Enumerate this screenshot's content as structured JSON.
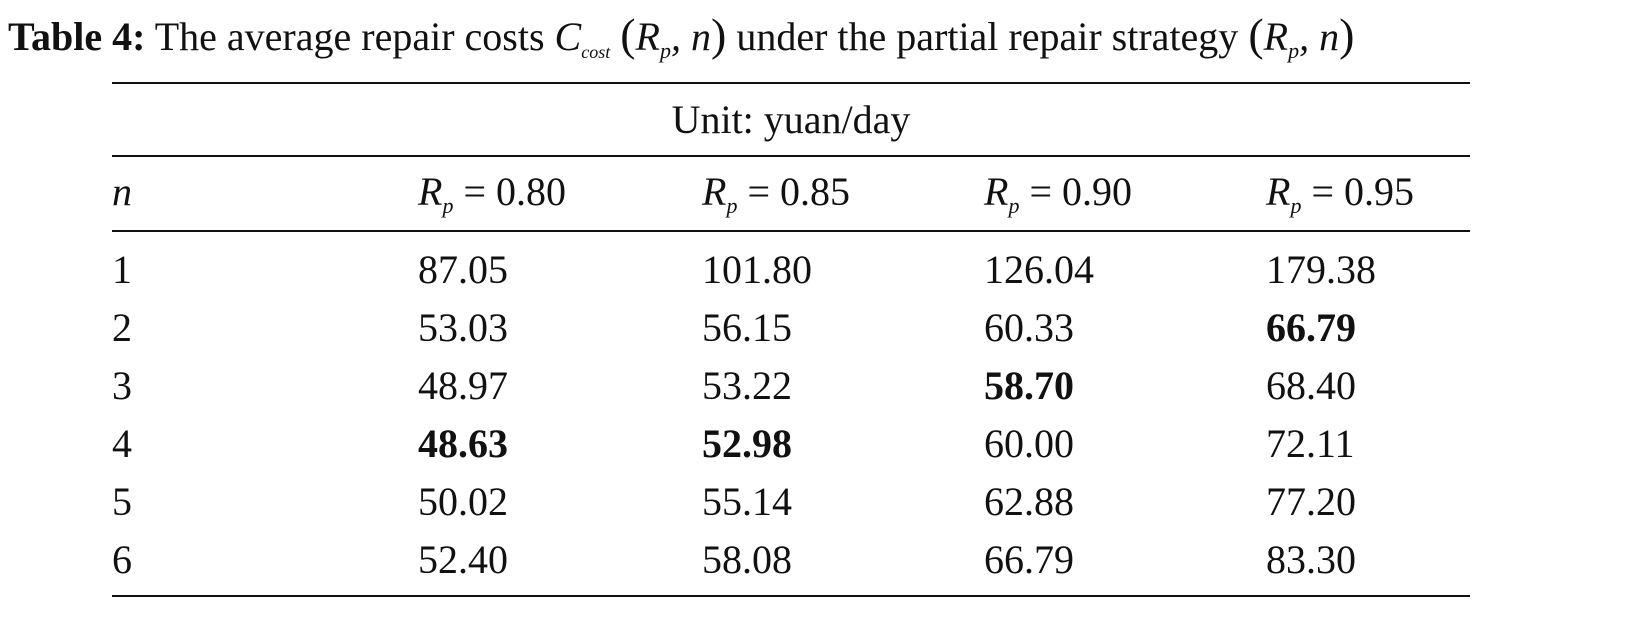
{
  "caption": {
    "label": "Table 4:",
    "before": "The average repair costs",
    "cost_symbol": "C",
    "cost_subscript": "cost",
    "tuple": {
      "open": "(",
      "var": "R",
      "sub": "p",
      "rest": ", n",
      "close": ")"
    },
    "middle": "under the partial repair strategy"
  },
  "table": {
    "unit": "Unit: yuan/day",
    "header": {
      "first": "n",
      "columns": [
        {
          "var": "R",
          "sub": "p",
          "rest": "= 0.80"
        },
        {
          "var": "R",
          "sub": "p",
          "rest": "= 0.85"
        },
        {
          "var": "R",
          "sub": "p",
          "rest": "= 0.90"
        },
        {
          "var": "R",
          "sub": "p",
          "rest": "= 0.95"
        }
      ]
    },
    "rows": [
      {
        "n": "1",
        "values": [
          "87.05",
          "101.80",
          "126.04",
          "179.38"
        ],
        "bold": [
          false,
          false,
          false,
          false
        ]
      },
      {
        "n": "2",
        "values": [
          "53.03",
          "56.15",
          "60.33",
          "66.79"
        ],
        "bold": [
          false,
          false,
          false,
          true
        ]
      },
      {
        "n": "3",
        "values": [
          "48.97",
          "53.22",
          "58.70",
          "68.40"
        ],
        "bold": [
          false,
          false,
          true,
          false
        ]
      },
      {
        "n": "4",
        "values": [
          "48.63",
          "52.98",
          "60.00",
          "72.11"
        ],
        "bold": [
          true,
          true,
          false,
          false
        ]
      },
      {
        "n": "5",
        "values": [
          "50.02",
          "55.14",
          "62.88",
          "77.20"
        ],
        "bold": [
          false,
          false,
          false,
          false
        ]
      },
      {
        "n": "6",
        "values": [
          "52.40",
          "58.08",
          "66.79",
          "83.30"
        ],
        "bold": [
          false,
          false,
          false,
          false
        ]
      }
    ]
  }
}
